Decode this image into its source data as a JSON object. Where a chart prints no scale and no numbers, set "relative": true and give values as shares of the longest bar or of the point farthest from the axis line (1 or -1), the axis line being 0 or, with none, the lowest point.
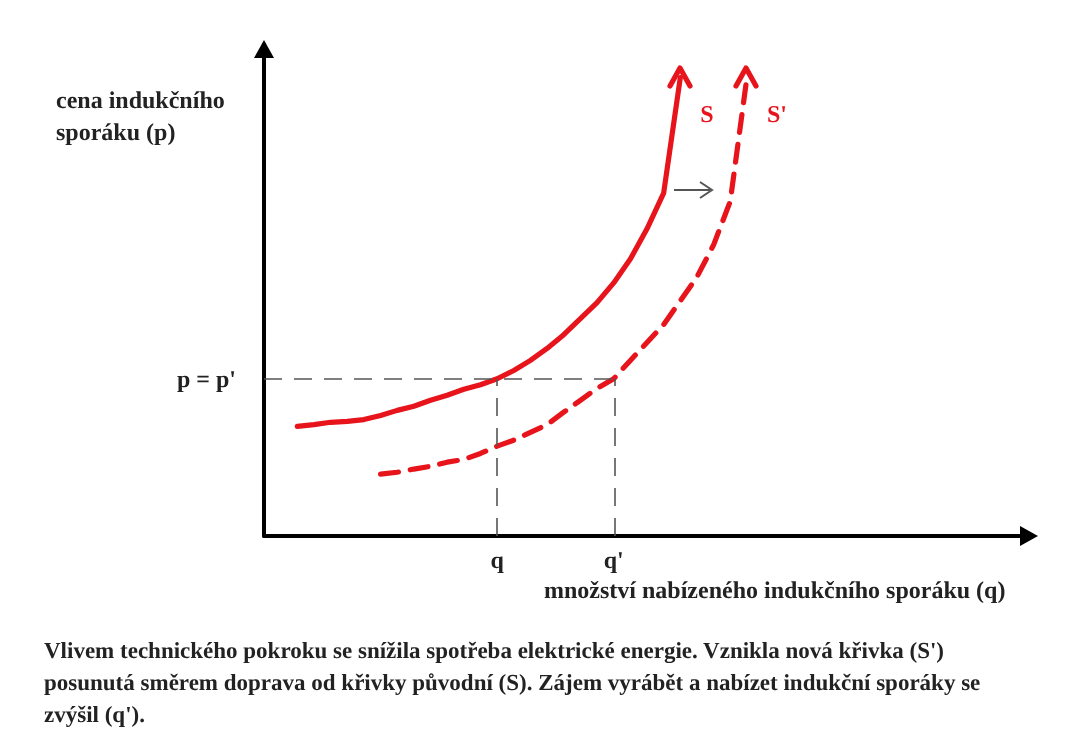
{
  "chart_data": {
    "type": "line",
    "relative": true,
    "xlabel": "množství nabízeného indukčního sporáku (q)",
    "ylabel": "cena indukčního sporáku (p)",
    "categories": [
      null,
      null,
      null,
      null,
      null,
      null,
      null,
      null,
      null,
      null,
      null,
      null,
      null,
      null,
      "q",
      null,
      null,
      null,
      null,
      null,
      null,
      "q'",
      null,
      null,
      null,
      null,
      null,
      null,
      null,
      null,
      null,
      null,
      null,
      null,
      null,
      null,
      null,
      null,
      null,
      null,
      null,
      null,
      null,
      null,
      null,
      null,
      null
    ],
    "series": [
      {
        "name": "S",
        "color": "#e8141b",
        "line_style": "solid",
        "values": [
          null,
          null,
          0.239,
          0.243,
          0.248,
          0.25,
          0.254,
          0.263,
          0.274,
          0.283,
          0.296,
          0.307,
          0.32,
          0.33,
          0.343,
          0.361,
          0.383,
          0.409,
          0.439,
          0.474,
          0.509,
          0.552,
          0.604,
          0.67,
          0.748,
          1,
          null,
          null,
          null,
          null,
          null,
          null,
          null,
          null,
          null,
          null,
          null,
          null,
          null,
          null,
          null,
          null,
          null,
          null,
          null,
          null,
          null
        ]
      },
      {
        "name": "S'",
        "color": "#e8141b",
        "line_style": "dashed",
        "values": [
          null,
          null,
          null,
          null,
          null,
          null,
          null,
          0.135,
          0.139,
          0.146,
          0.152,
          0.161,
          0.167,
          0.18,
          0.196,
          0.209,
          0.226,
          0.243,
          0.27,
          0.296,
          0.322,
          0.343,
          0.383,
          0.422,
          0.461,
          0.513,
          0.565,
          0.635,
          0.73,
          1,
          null,
          null,
          null,
          null,
          null,
          null,
          null,
          null,
          null,
          null,
          null,
          null,
          null,
          null,
          null,
          null,
          null
        ]
      }
    ],
    "ref_lines": [
      {
        "axis": "y",
        "value": 0.343,
        "label": "p = p'",
        "line_style": "dashed",
        "color": "#555555"
      },
      {
        "axis": "x",
        "value": "q",
        "label": null,
        "line_style": "dashed",
        "color": "#555555"
      },
      {
        "axis": "x",
        "value": "q'",
        "label": null,
        "line_style": "dashed",
        "color": "#555555"
      }
    ],
    "annotations": [
      "Vlivem technického pokroku se snížila spotřeba elektrické energie. Vznikla nová křivka (S') posunutá směrem doprava od křivky původní (S). Zájem vyrábět a nabízet indukční sporáky se zvýšil (q')."
    ]
  }
}
